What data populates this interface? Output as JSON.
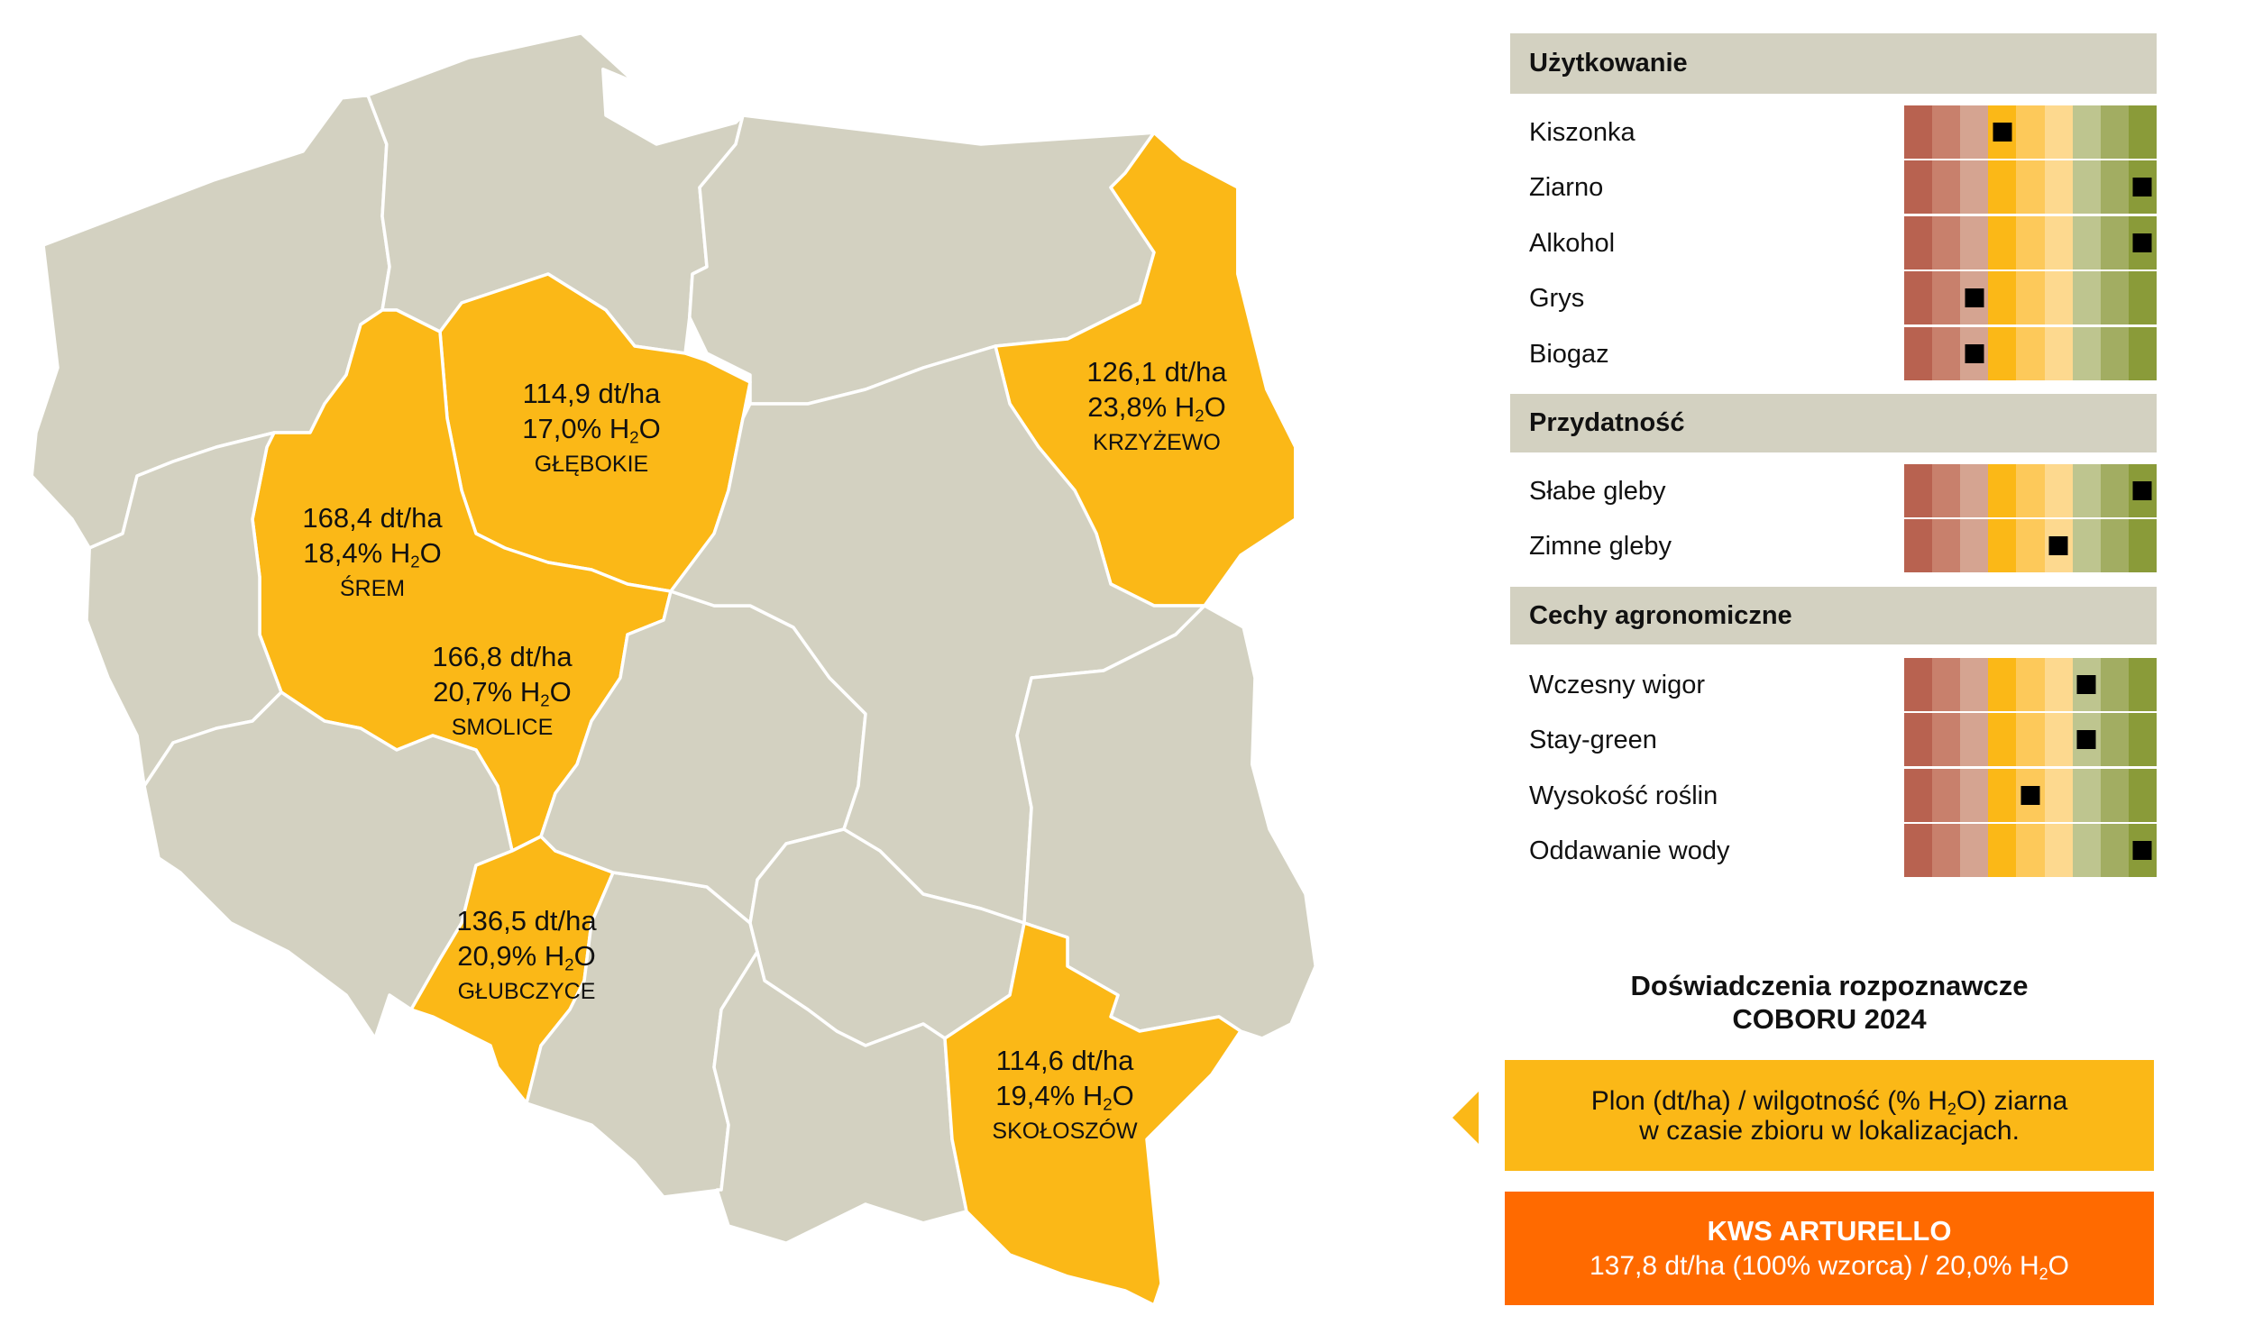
{
  "chart_data": {
    "type": "table",
    "title": "",
    "scale_levels": 9,
    "scale_colors": [
      "#b86250",
      "#c8806c",
      "#d5a491",
      "#fbb817",
      "#fdc95a",
      "#fdd98f",
      "#bec58f",
      "#a2ad62",
      "#8a9b39"
    ],
    "sections": [
      {
        "header": "Użytkowanie",
        "rows": [
          {
            "label": "Kiszonka",
            "value": 4
          },
          {
            "label": "Ziarno",
            "value": 9
          },
          {
            "label": "Alkohol",
            "value": 9
          },
          {
            "label": "Grys",
            "value": 3
          },
          {
            "label": "Biogaz",
            "value": 3
          }
        ]
      },
      {
        "header": "Przydatność",
        "rows": [
          {
            "label": "Słabe gleby",
            "value": 9
          },
          {
            "label": "Zimne gleby",
            "value": 6
          }
        ]
      },
      {
        "header": "Cechy agronomiczne",
        "rows": [
          {
            "label": "Wczesny wigor",
            "value": 7
          },
          {
            "label": "Stay-green",
            "value": 7
          },
          {
            "label": "Wysokość roślin",
            "value": 5
          },
          {
            "label": "Oddawanie wody",
            "value": 9
          }
        ]
      }
    ]
  },
  "map": {
    "colors": {
      "base": "#d3d1c1",
      "highlight": "#fbb817",
      "border": "#ffffff"
    },
    "locations": [
      {
        "id": "glebokie",
        "yield": "114,9 dt/ha",
        "moisture": "17,0%",
        "name": "GŁĘBOKIE"
      },
      {
        "id": "krzyzewo",
        "yield": "126,1 dt/ha",
        "moisture": "23,8%",
        "name": "KRZYŻEWO"
      },
      {
        "id": "srem",
        "yield": "168,4 dt/ha",
        "moisture": "18,4%",
        "name": "ŚREM"
      },
      {
        "id": "smolice",
        "yield": "166,8 dt/ha",
        "moisture": "20,7%",
        "name": "SMOLICE"
      },
      {
        "id": "glubczyce",
        "yield": "136,5 dt/ha",
        "moisture": "20,9%",
        "name": "GŁUBCZYCE"
      },
      {
        "id": "skoloszow",
        "yield": "114,6 dt/ha",
        "moisture": "19,4%",
        "name": "SKOŁOSZÓW"
      }
    ],
    "h2o": {
      "h": "H",
      "sub": "2",
      "o": "O"
    }
  },
  "info": {
    "title_line1": "Doświadczenia rozpoznawcze",
    "title_line2": "COBORU 2024",
    "note_line1_a": "Plon (dt/ha) / wilgotność (% ",
    "note_line1_b": ") ziarna",
    "note_line2": "w czasie zbioru w lokalizacjach.",
    "reference_name": "KWS ARTURELLO",
    "reference_value": "137,8 dt/ha (100% wzorca) / 20,0% ",
    "accent_yellow": "#fbb817",
    "accent_orange": "#ff6a00"
  }
}
